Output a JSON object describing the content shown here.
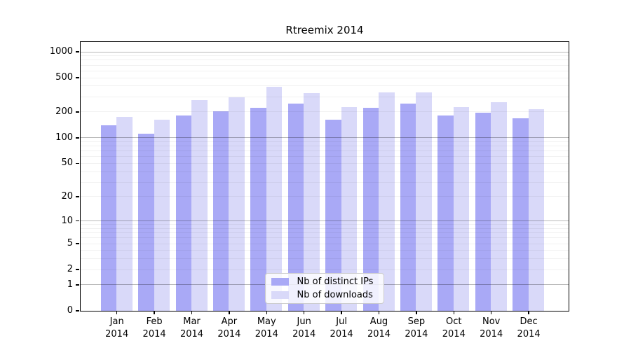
{
  "title": "Rtreemix 2014",
  "chart_data": {
    "type": "bar",
    "title": "Rtreemix 2014",
    "x_categories": [
      "Jan",
      "Feb",
      "Mar",
      "Apr",
      "May",
      "Jun",
      "Jul",
      "Aug",
      "Sep",
      "Oct",
      "Nov",
      "Dec"
    ],
    "x_year": "2014",
    "series": [
      {
        "name": "Nb of distinct IPs",
        "color": "#a9a9f6",
        "values": [
          138,
          111,
          181,
          200,
          222,
          250,
          161,
          223,
          248,
          179,
          195,
          168
        ]
      },
      {
        "name": "Nb of downloads",
        "color": "#d9d9f9",
        "values": [
          175,
          162,
          273,
          296,
          390,
          326,
          224,
          336,
          333,
          228,
          257,
          215
        ]
      }
    ],
    "y_scale": "log1p",
    "y_ticks": [
      0,
      1,
      2,
      5,
      10,
      20,
      50,
      100,
      200,
      500,
      1000
    ],
    "y_major_gridlines": [
      1,
      10,
      100,
      1000
    ],
    "ylim": [
      0,
      1300
    ],
    "grid": "both",
    "legend_position": "lower-center-inside"
  }
}
